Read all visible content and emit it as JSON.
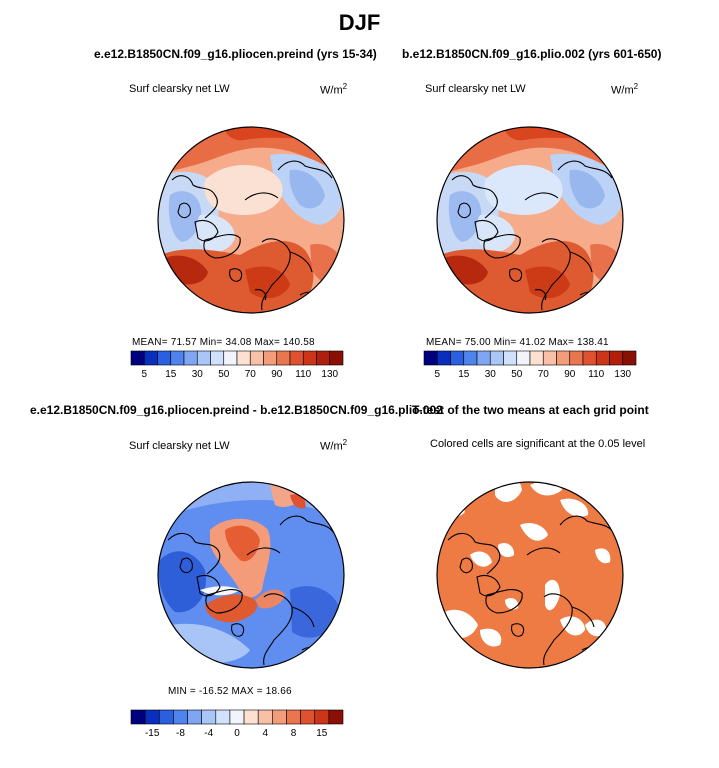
{
  "figure": {
    "title": "DJF"
  },
  "panels": [
    {
      "title": "e.e12.B1850CN.f09_g16.pliocen.preind (yrs 15-34)",
      "subtitle": "Surf clearsky net LW",
      "units": "W/m",
      "units_sup": "2",
      "stats": "MEAN=   71.57   Min=   34.08   Max=  140.58",
      "colorbar": {
        "labels": [
          "5",
          "15",
          "30",
          "50",
          "70",
          "90",
          "110",
          "130"
        ],
        "colors": [
          "#00007f",
          "#0a2fbf",
          "#2a5fe0",
          "#4f83ee",
          "#7ea6f2",
          "#a9c6f7",
          "#cfe1fb",
          "#f1f4fb",
          "#fce0d2",
          "#f8c0a6",
          "#f29c7a",
          "#ea7650",
          "#e0522f",
          "#cd3518",
          "#b01f0c",
          "#8a1005"
        ]
      }
    },
    {
      "title": "b.e12.B1850CN.f09_g16.plio.002 (yrs 601-650)",
      "subtitle": "Surf clearsky net LW",
      "units": "W/m",
      "units_sup": "2",
      "stats": "MEAN=   75.00   Min=   41.02   Max=  138.41",
      "colorbar": {
        "labels": [
          "5",
          "15",
          "30",
          "50",
          "70",
          "90",
          "110",
          "130"
        ],
        "colors": [
          "#00007f",
          "#0a2fbf",
          "#2a5fe0",
          "#4f83ee",
          "#7ea6f2",
          "#a9c6f7",
          "#cfe1fb",
          "#f1f4fb",
          "#fce0d2",
          "#f8c0a6",
          "#f29c7a",
          "#ea7650",
          "#e0522f",
          "#cd3518",
          "#b01f0c",
          "#8a1005"
        ]
      }
    },
    {
      "title": "e.e12.B1850CN.f09_g16.pliocen.preind - b.e12.B1850CN.f09_g16.plio.002",
      "subtitle": "Surf clearsky net LW",
      "units": "W/m",
      "units_sup": "2",
      "stats": "MIN = -16.52  MAX =  18.66",
      "colorbar": {
        "labels": [
          "-15",
          "-8",
          "-4",
          "0",
          "4",
          "8",
          "15"
        ],
        "colors": [
          "#00007f",
          "#0a2fbf",
          "#2a5fe0",
          "#4f83ee",
          "#7ea6f2",
          "#a9c6f7",
          "#cfe1fb",
          "#f1f4fb",
          "#fce0d2",
          "#f8c0a6",
          "#f29c7a",
          "#ea7650",
          "#e0522f",
          "#cd3518",
          "#8a1005"
        ]
      }
    },
    {
      "title": "T-test of the two means at each grid point",
      "subtitle": "Colored cells are significant at the 0.05 level",
      "fill_color": "#ee7a44"
    }
  ],
  "chart_data": [
    {
      "type": "heatmap",
      "projection": "north polar stereographic",
      "title": "e.e12.B1850CN.f09_g16.pliocen.preind (yrs 15-34)",
      "variable": "Surf clearsky net LW",
      "units": "W/m2",
      "mean": 71.57,
      "min": 34.08,
      "max": 140.58,
      "levels": [
        5,
        15,
        30,
        50,
        70,
        90,
        110,
        130
      ]
    },
    {
      "type": "heatmap",
      "projection": "north polar stereographic",
      "title": "b.e12.B1850CN.f09_g16.plio.002 (yrs 601-650)",
      "variable": "Surf clearsky net LW",
      "units": "W/m2",
      "mean": 75.0,
      "min": 41.02,
      "max": 138.41,
      "levels": [
        5,
        15,
        30,
        50,
        70,
        90,
        110,
        130
      ]
    },
    {
      "type": "heatmap",
      "projection": "north polar stereographic",
      "title": "e.e12.B1850CN.f09_g16.pliocen.preind - b.e12.B1850CN.f09_g16.plio.002",
      "variable": "Surf clearsky net LW",
      "units": "W/m2",
      "min": -16.52,
      "max": 18.66,
      "levels": [
        -15,
        -8,
        -4,
        0,
        4,
        8,
        15
      ]
    },
    {
      "type": "heatmap",
      "projection": "north polar stereographic",
      "title": "T-test of the two means at each grid point",
      "note": "Colored cells are significant at the 0.05 level",
      "significance_level": 0.05
    }
  ]
}
